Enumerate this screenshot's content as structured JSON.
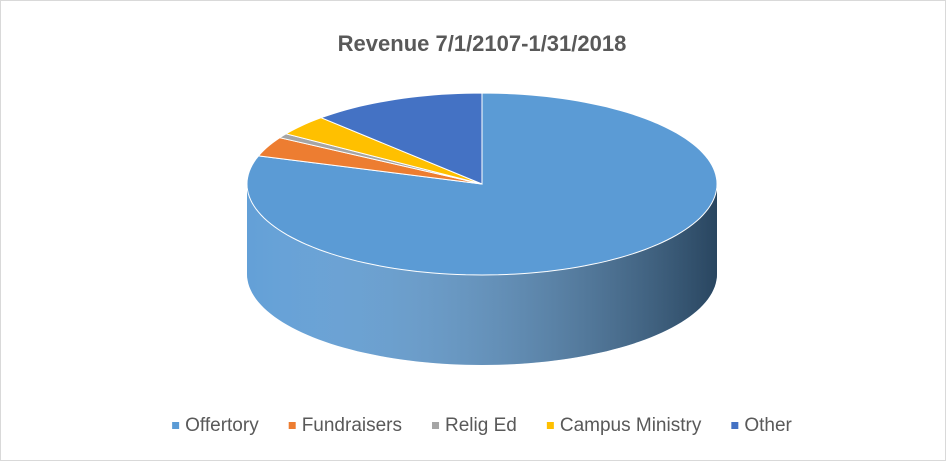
{
  "chart_data": {
    "type": "pie",
    "title": "Revenue 7/1/2107-1/31/2018",
    "categories": [
      "Offertory",
      "Fundraisers",
      "Relig Ed",
      "Campus Ministry",
      "Other"
    ],
    "values": [
      80,
      3.5,
      0.8,
      3.7,
      12
    ],
    "colors": [
      "#5b9bd5",
      "#ed7d31",
      "#a5a5a5",
      "#ffc000",
      "#4472c4"
    ],
    "legend": "bottom"
  }
}
